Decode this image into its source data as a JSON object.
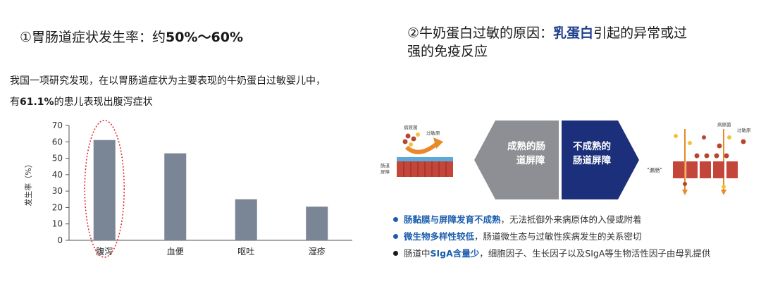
{
  "left": {
    "title_prefix": "①胃肠道症状发生率：约",
    "title_value": "50%～60%",
    "intro_line1": "我国一项研究发现，在以胃肠道症状为主要表现的牛奶蛋白过敏婴儿中，",
    "intro_line2_prefix": "有",
    "intro_line2_value": "61.1%",
    "intro_line2_suffix": "的患儿表现出腹泻症状"
  },
  "right": {
    "title_prefix": "②牛奶蛋白过敏的原因：",
    "title_highlight": "乳蛋白",
    "title_suffix_line1": "引起的异常或过",
    "title_line2": "强的免疫反应",
    "diagram": {
      "left_pathogen": "病原菌",
      "left_allergen": "过敏原",
      "barrier_label_1": "肠道",
      "barrier_label_2": "屏障",
      "mature_line1": "成熟的肠",
      "mature_line2": "道屏障",
      "immature_line1": "不成熟的",
      "immature_line2": "肠道屏障",
      "right_pathogen": "病原菌",
      "right_allergen": "过敏原",
      "leaky_label": "\"漏肠\""
    },
    "bullets": [
      {
        "bold": "肠黏膜与屏障发育不成熟",
        "text": "，无法抵御外来病原体的入侵或附着",
        "color": "#1d5fae"
      },
      {
        "bold": "微生物多样性较低",
        "text": "，肠道微生态与过敏性疾病发生的关系密切",
        "color": "#1d5fae"
      },
      {
        "prefix": "肠道中",
        "bold": "SIgA含量少",
        "text": "，细胞因子、生长因子以及SIgA等生物活性因子由母乳提供",
        "color": "#1a1a1a"
      }
    ]
  },
  "chart_data": {
    "type": "bar",
    "categories": [
      "腹泻",
      "血便",
      "呕吐",
      "湿疹"
    ],
    "values": [
      61.1,
      53,
      25,
      20.5
    ],
    "title": "",
    "xlabel": "",
    "ylabel": "发生率（%）",
    "ylim": [
      0,
      70
    ],
    "yticks": [
      0,
      10,
      20,
      30,
      40,
      50,
      60,
      70
    ],
    "bar_color": "#7a8596",
    "highlight_category": "腹泻",
    "highlight_color": "#e02020",
    "grid": false
  }
}
